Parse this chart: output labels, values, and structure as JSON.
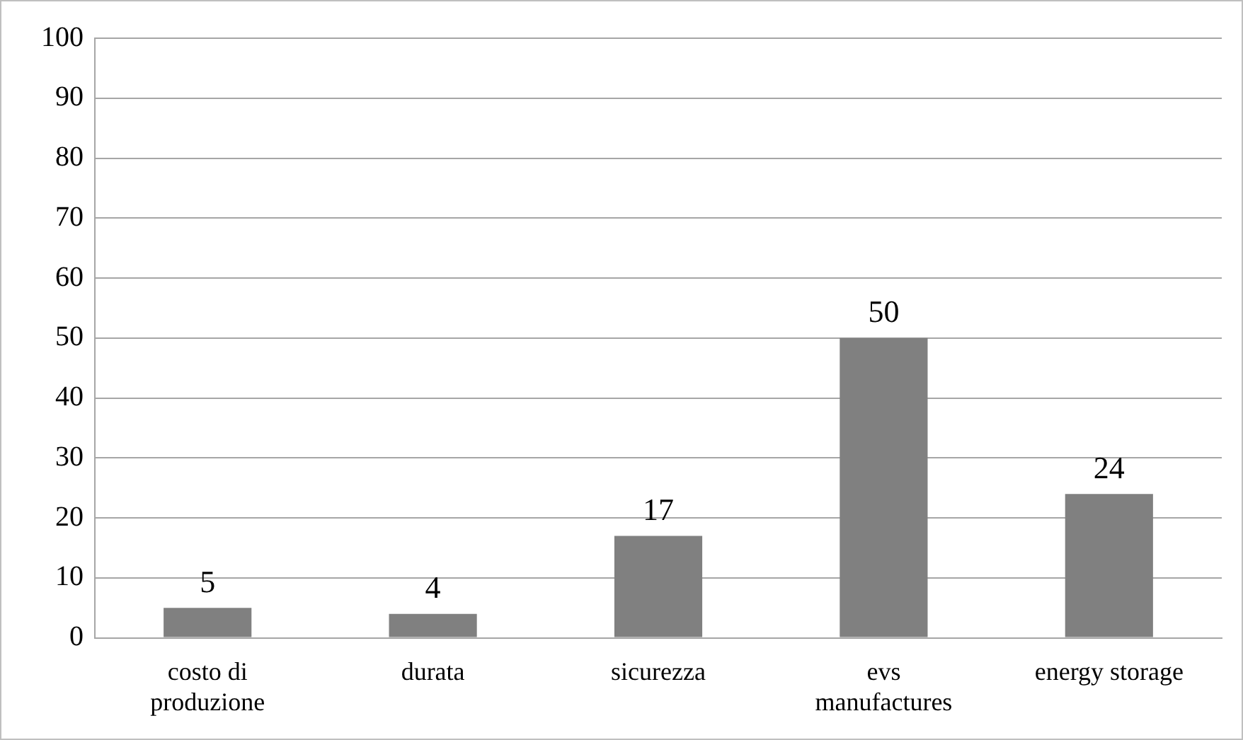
{
  "chart_data": {
    "type": "bar",
    "categories": [
      "costo di produzione",
      "durata",
      "sicurezza",
      "evs manufactures",
      "energy storage"
    ],
    "values": [
      5,
      4,
      17,
      50,
      24
    ],
    "color": "#808080",
    "ylim": [
      0,
      100
    ],
    "yticks": [
      0,
      10,
      20,
      30,
      40,
      50,
      60,
      70,
      80,
      90,
      100
    ],
    "grid": "y",
    "data_labels": true
  }
}
